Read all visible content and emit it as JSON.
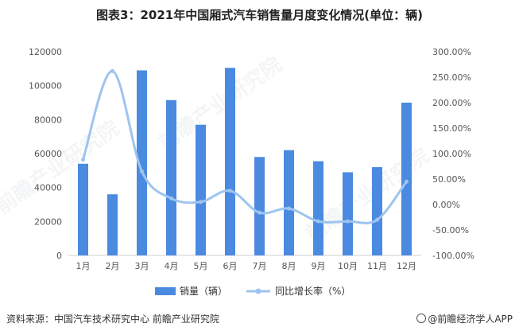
{
  "title": "图表3：2021年中国厢式汽车销售量月度变化情况(单位：辆)",
  "source": "资料来源：中国汽车技术研究中心 前瞻产业研究院",
  "brand": "@前瞻经济学人APP",
  "watermark": "前瞻产业研究院",
  "colors": {
    "bar": "#4a8ae0",
    "line": "#9ec4ef",
    "axis_text": "#555555",
    "axis_line": "#d0d0d0"
  },
  "chart_data": {
    "type": "bar",
    "categories": [
      "1月",
      "2月",
      "3月",
      "4月",
      "5月",
      "6月",
      "7月",
      "8月",
      "9月",
      "10月",
      "11月",
      "12月"
    ],
    "series": [
      {
        "name": "销量（辆）",
        "type": "bar",
        "axis": "left",
        "values": [
          54000,
          36000,
          109000,
          91500,
          77000,
          110500,
          58000,
          62000,
          55500,
          49000,
          52000,
          90000
        ]
      },
      {
        "name": "同比增长率（%）",
        "type": "line",
        "axis": "right",
        "smooth": true,
        "values": [
          88,
          262,
          65,
          12,
          5,
          27,
          -16,
          -8,
          -33,
          -33,
          -30,
          45
        ]
      }
    ],
    "y_left": {
      "min": 0,
      "max": 120000,
      "ticks": [
        "0",
        "20000",
        "40000",
        "60000",
        "80000",
        "100000",
        "120000"
      ]
    },
    "y_right": {
      "min": -100,
      "max": 300,
      "ticks": [
        "-100.00%",
        "-50.00%",
        "0.00%",
        "50.00%",
        "100.00%",
        "150.00%",
        "200.00%",
        "250.00%",
        "300.00%"
      ]
    },
    "legend": "bottom"
  }
}
